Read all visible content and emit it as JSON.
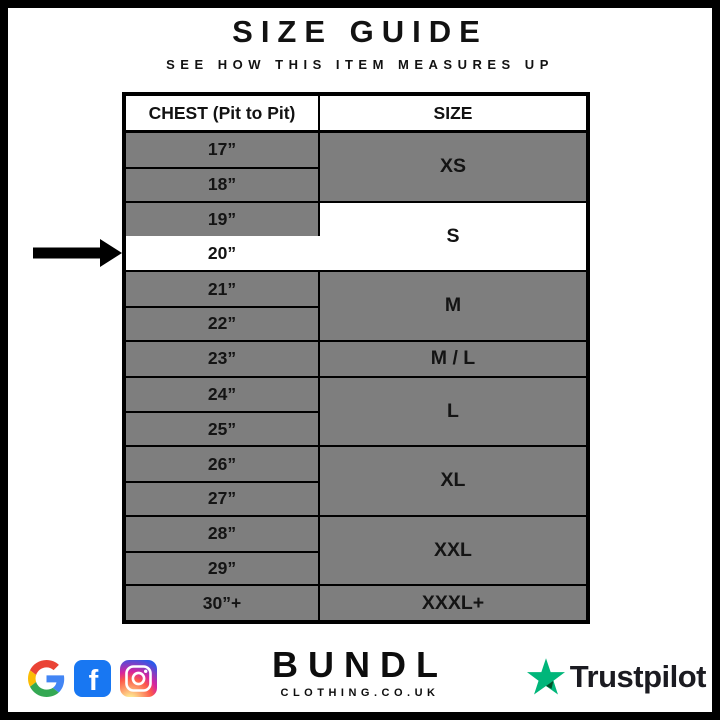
{
  "page": {
    "title": "SIZE GUIDE",
    "subtitle": "SEE HOW THIS ITEM MEASURES UP"
  },
  "table": {
    "columns": [
      "CHEST (Pit to Pit)",
      "SIZE"
    ],
    "groups": [
      {
        "size": "XS",
        "rows": [
          {
            "label": "17”"
          },
          {
            "label": "18”"
          }
        ]
      },
      {
        "size": "S",
        "highlight": true,
        "rows": [
          {
            "label": "19”"
          },
          {
            "label": "20”",
            "highlight": true
          }
        ]
      },
      {
        "size": "M",
        "rows": [
          {
            "label": "21”"
          },
          {
            "label": "22”"
          }
        ]
      },
      {
        "size": "M / L",
        "rows": [
          {
            "label": "23”"
          }
        ]
      },
      {
        "size": "L",
        "rows": [
          {
            "label": "24”"
          },
          {
            "label": "25”"
          }
        ]
      },
      {
        "size": "XL",
        "rows": [
          {
            "label": "26”"
          },
          {
            "label": "27”"
          }
        ]
      },
      {
        "size": "XXL",
        "rows": [
          {
            "label": "28”"
          },
          {
            "label": "29”"
          }
        ]
      },
      {
        "size": "XXXL+",
        "rows": [
          {
            "label": "30”+"
          }
        ]
      }
    ],
    "colors": {
      "row_gray": "#7e7e7e",
      "highlight_white": "#ffffff",
      "border_black": "#000000"
    }
  },
  "annotation": {
    "arrow_points_to_row": "20”"
  },
  "footer": {
    "brand": {
      "name": "BUNDL",
      "domain": "CLOTHING.CO.UK"
    },
    "facebook_letter": "f",
    "trustpilot_label": "Trustpilot",
    "colors": {
      "facebook_blue": "#1877F2",
      "trustpilot_green": "#00B67A",
      "trustpilot_dark_green": "#005128",
      "google_blue": "#4285F4",
      "google_red": "#EA4335",
      "google_yellow": "#FBBC05",
      "google_green": "#34A853"
    }
  }
}
